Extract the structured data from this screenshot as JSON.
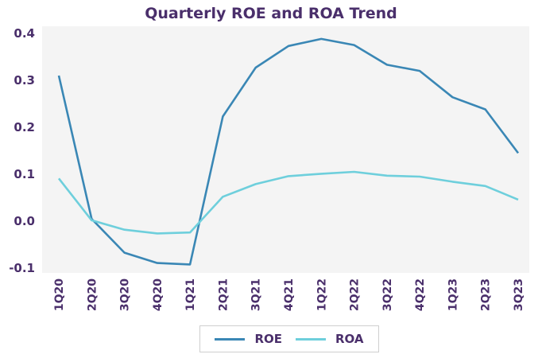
{
  "chart_data": {
    "type": "line",
    "title": "Quarterly ROE and ROA Trend",
    "xlabel": "",
    "ylabel": "",
    "categories": [
      "1Q20",
      "2Q20",
      "3Q20",
      "4Q20",
      "1Q21",
      "2Q21",
      "3Q21",
      "4Q21",
      "1Q22",
      "2Q22",
      "3Q22",
      "4Q22",
      "1Q23",
      "2Q23",
      "3Q23"
    ],
    "series": [
      {
        "name": "ROE",
        "color": "#3a87b5",
        "values": [
          0.31,
          0.005,
          -0.067,
          -0.089,
          -0.092,
          0.223,
          0.327,
          0.373,
          0.388,
          0.375,
          0.333,
          0.32,
          0.264,
          0.238,
          0.145
        ]
      },
      {
        "name": "ROA",
        "color": "#6ecfdc",
        "values": [
          0.091,
          0.002,
          -0.018,
          -0.026,
          -0.024,
          0.052,
          0.079,
          0.096,
          0.101,
          0.105,
          0.097,
          0.095,
          0.084,
          0.075,
          0.046
        ]
      }
    ],
    "ylim": [
      -0.11,
      0.415
    ],
    "yticks": [
      "-0.1",
      "0.0",
      "0.1",
      "0.2",
      "0.3",
      "0.4"
    ],
    "grid": false,
    "plot_background": "#f4f4f4",
    "legend_position": "bottom-center"
  }
}
